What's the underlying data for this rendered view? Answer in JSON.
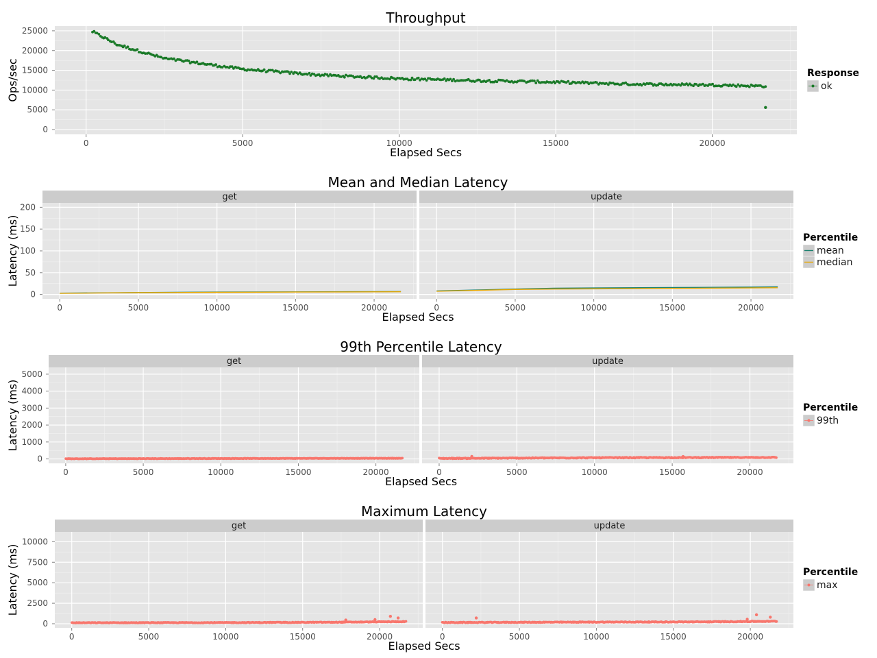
{
  "chart_data": [
    {
      "type": "scatter",
      "title": "Throughput",
      "xlabel": "Elapsed Secs",
      "ylabel": "Ops/sec",
      "xlim": [
        -1000,
        22700
      ],
      "ylim": [
        -1200,
        26200
      ],
      "xticks": [
        0,
        5000,
        10000,
        15000,
        20000
      ],
      "yticks": [
        0,
        5000,
        10000,
        15000,
        20000,
        25000
      ],
      "legend": {
        "title": "Response",
        "position": "right",
        "entries": [
          {
            "label": "ok",
            "color": "#1a7a28"
          }
        ]
      },
      "series": [
        {
          "name": "ok",
          "color": "#1a7a28",
          "x_start": 200,
          "x_end": 21700,
          "trend": [
            [
              200,
              24800
            ],
            [
              1000,
              21500
            ],
            [
              2500,
              18000
            ],
            [
              5000,
              15300
            ],
            [
              7500,
              13800
            ],
            [
              10000,
              12900
            ],
            [
              12500,
              12400
            ],
            [
              15000,
              12000
            ],
            [
              17500,
              11500
            ],
            [
              20000,
              11300
            ],
            [
              21700,
              11000
            ]
          ],
          "spread": 600,
          "outliers": [
            [
              21700,
              5600
            ]
          ]
        }
      ]
    },
    {
      "type": "line",
      "title": "Mean and Median Latency",
      "xlabel": "Elapsed Secs",
      "ylabel": "Latency (ms)",
      "facets": [
        "get",
        "update"
      ],
      "xlim": [
        -1100,
        22700
      ],
      "ylim": [
        -10,
        210
      ],
      "xticks": [
        0,
        5000,
        10000,
        15000,
        20000
      ],
      "yticks": [
        0,
        50,
        100,
        150,
        200
      ],
      "legend": {
        "title": "Percentile",
        "position": "right",
        "entries": [
          {
            "label": "mean",
            "color": "#1d8270"
          },
          {
            "label": "median",
            "color": "#e8a800"
          }
        ]
      },
      "series": [
        {
          "name": "mean",
          "color": "#1d8270",
          "panels": {
            "get": [
              [
                0,
                3
              ],
              [
                5000,
                4.5
              ],
              [
                10000,
                5.5
              ],
              [
                15000,
                6
              ],
              [
                20000,
                6.5
              ],
              [
                21700,
                6.8
              ]
            ],
            "update": [
              [
                0,
                8
              ],
              [
                5000,
                12.5
              ],
              [
                7500,
                14.5
              ],
              [
                10000,
                15
              ],
              [
                15000,
                16
              ],
              [
                20000,
                17
              ],
              [
                21700,
                17.5
              ]
            ]
          }
        },
        {
          "name": "median",
          "color": "#e8a800",
          "panels": {
            "get": [
              [
                0,
                2.8
              ],
              [
                5000,
                4.2
              ],
              [
                10000,
                5
              ],
              [
                15000,
                5.5
              ],
              [
                20000,
                6
              ],
              [
                21700,
                6.2
              ]
            ],
            "update": [
              [
                0,
                7.5
              ],
              [
                5000,
                11.5
              ],
              [
                7500,
                12.5
              ],
              [
                10000,
                13
              ],
              [
                15000,
                14
              ],
              [
                20000,
                15
              ],
              [
                21700,
                15.5
              ]
            ]
          }
        }
      ]
    },
    {
      "type": "scatter",
      "title": "99th Percentile Latency",
      "xlabel": "Elapsed Secs",
      "ylabel": "Latency (ms)",
      "facets": [
        "get",
        "update"
      ],
      "xlim": [
        -1100,
        22800
      ],
      "ylim": [
        -260,
        5400
      ],
      "xticks": [
        0,
        5000,
        10000,
        15000,
        20000
      ],
      "yticks": [
        0,
        1000,
        2000,
        3000,
        4000,
        5000
      ],
      "legend": {
        "title": "Percentile",
        "position": "right",
        "entries": [
          {
            "label": "99th",
            "color": "#f8766d"
          }
        ]
      },
      "series": [
        {
          "name": "99th",
          "color": "#f8766d",
          "panels": {
            "get": {
              "trend": [
                [
                  0,
                  10
                ],
                [
                  10000,
                  25
                ],
                [
                  21700,
                  40
                ]
              ],
              "spread": 25,
              "outliers": []
            },
            "update": {
              "trend": [
                [
                  0,
                  30
                ],
                [
                  10000,
                  70
                ],
                [
                  21700,
                  90
                ]
              ],
              "spread": 45,
              "outliers": [
                [
                  2100,
                  150
                ],
                [
                  15700,
                  140
                ]
              ]
            }
          }
        }
      ]
    },
    {
      "type": "scatter",
      "title": "Maximum Latency",
      "xlabel": "Elapsed Secs",
      "ylabel": "Latency (ms)",
      "facets": [
        "get",
        "update"
      ],
      "xlim": [
        -1100,
        22800
      ],
      "ylim": [
        -500,
        11200
      ],
      "xticks": [
        0,
        5000,
        10000,
        15000,
        20000
      ],
      "yticks": [
        0,
        2500,
        5000,
        7500,
        10000
      ],
      "legend": {
        "title": "Percentile",
        "position": "right",
        "entries": [
          {
            "label": "max",
            "color": "#f8766d"
          }
        ]
      },
      "series": [
        {
          "name": "max",
          "color": "#f8766d",
          "panels": {
            "get": {
              "trend": [
                [
                  0,
                  120
                ],
                [
                  10000,
                  140
                ],
                [
                  17000,
                  180
                ],
                [
                  21700,
                  260
                ]
              ],
              "spread": 80,
              "outliers": [
                [
                  17800,
                  450
                ],
                [
                  20700,
                  900
                ],
                [
                  21200,
                  700
                ],
                [
                  19700,
                  500
                ]
              ]
            },
            "update": {
              "trend": [
                [
                  0,
                  150
                ],
                [
                  10000,
                  200
                ],
                [
                  17000,
                  230
                ],
                [
                  21700,
                  300
                ]
              ],
              "spread": 90,
              "outliers": [
                [
                  2200,
                  700
                ],
                [
                  20400,
                  1100
                ],
                [
                  21300,
                  800
                ],
                [
                  19800,
                  550
                ]
              ]
            }
          }
        }
      ]
    }
  ]
}
